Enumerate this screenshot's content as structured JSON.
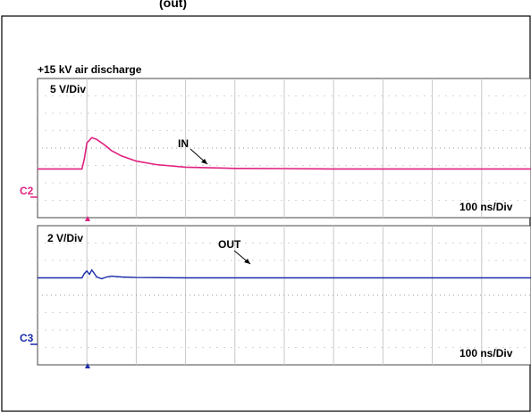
{
  "header": {
    "title_fragment": "(out)"
  },
  "chart_data": [
    {
      "type": "line",
      "title": "+15 kV air discharge",
      "channel": "C2",
      "vertical_scale": "5 V/Div",
      "time_scale": "100 ns/Div",
      "annotation": "IN",
      "color": "#e0207f",
      "x_unit": "ns",
      "xlim": [
        0,
        1000
      ],
      "ylim": [
        -4,
        4
      ],
      "series": [
        {
          "name": "IN",
          "x": [
            0,
            90,
            95,
            100,
            110,
            120,
            135,
            150,
            170,
            200,
            240,
            300,
            400,
            500,
            600,
            700,
            800,
            900,
            1000
          ],
          "y": [
            0.0,
            0.0,
            0.6,
            1.5,
            1.8,
            1.7,
            1.4,
            1.05,
            0.75,
            0.45,
            0.25,
            0.1,
            0.03,
            0.02,
            0.0,
            0.0,
            0.0,
            0.0,
            0.0
          ]
        }
      ]
    },
    {
      "type": "line",
      "channel": "C3",
      "vertical_scale": "2 V/Div",
      "time_scale": "100 ns/Div",
      "annotation": "OUT",
      "color": "#1a2ca8",
      "x_unit": "ns",
      "xlim": [
        0,
        1000
      ],
      "ylim": [
        -4,
        4
      ],
      "series": [
        {
          "name": "OUT",
          "x": [
            0,
            90,
            95,
            100,
            105,
            110,
            115,
            120,
            130,
            140,
            150,
            170,
            200,
            300,
            500,
            700,
            1000
          ],
          "y": [
            0.0,
            0.0,
            0.25,
            0.4,
            0.2,
            0.45,
            0.25,
            0.05,
            -0.05,
            0.05,
            0.1,
            0.05,
            0.02,
            0.0,
            0.0,
            0.0,
            0.0
          ]
        }
      ]
    }
  ]
}
